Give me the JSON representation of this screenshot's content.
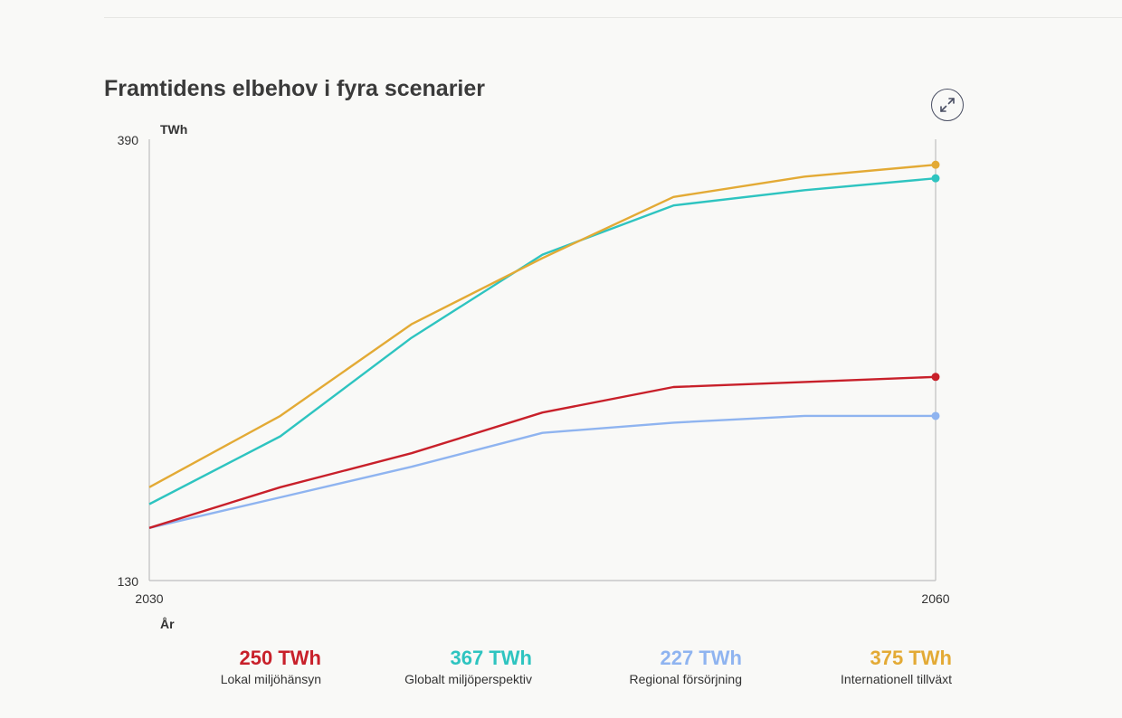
{
  "title": "Framtidens elbehov i fyra scenarier",
  "expand_icon": "expand-arrows-icon",
  "chart_data": {
    "type": "line",
    "title": "Framtidens elbehov i fyra scenarier",
    "ylabel": "TWh",
    "xlabel": "År",
    "ylim": [
      130,
      390
    ],
    "xlim": [
      2030,
      2060
    ],
    "y_ticks": [
      "390",
      "130"
    ],
    "x_ticks": [
      "2030",
      "2060"
    ],
    "x": [
      2030,
      2035,
      2040,
      2045,
      2050,
      2055,
      2060
    ],
    "series": [
      {
        "name": "Lokal miljöhänsyn",
        "value_label": "250 TWh",
        "color": "#c8202a",
        "values": [
          161,
          185,
          205,
          229,
          244,
          247,
          250
        ]
      },
      {
        "name": "Globalt miljöperspektiv",
        "value_label": "367 TWh",
        "color": "#2ec4c0",
        "values": [
          175,
          215,
          273,
          322,
          351,
          360,
          367
        ]
      },
      {
        "name": "Regional försörjning",
        "value_label": "227 TWh",
        "color": "#8fb4f0",
        "values": [
          161,
          179,
          197,
          217,
          223,
          227,
          227
        ]
      },
      {
        "name": "Internationell tillväxt",
        "value_label": "375 TWh",
        "color": "#e3aa35",
        "values": [
          185,
          227,
          281,
          320,
          356,
          368,
          375
        ]
      }
    ]
  }
}
